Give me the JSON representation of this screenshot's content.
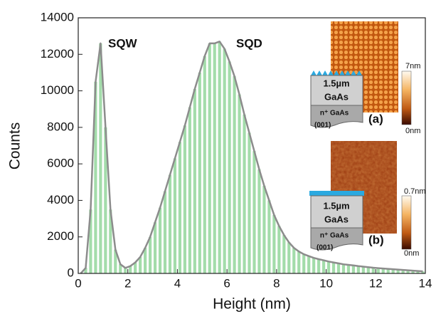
{
  "chart_data": {
    "type": "histogram",
    "xlabel": "Height (nm)",
    "ylabel": "Counts",
    "xlim": [
      0,
      14
    ],
    "ylim": [
      0,
      14000
    ],
    "xticks": [
      0,
      2,
      4,
      6,
      8,
      10,
      12,
      14
    ],
    "yticks": [
      0,
      2000,
      4000,
      6000,
      8000,
      10000,
      12000,
      14000
    ],
    "color": "#a3dcaa",
    "outline_color": "#8c8c8c",
    "bins": [
      0,
      0.2,
      0.4,
      0.6,
      0.8,
      1,
      1.2,
      1.4,
      1.6,
      1.8,
      2,
      2.2,
      2.4,
      2.6,
      2.8,
      3,
      3.2,
      3.4,
      3.6,
      3.8,
      4,
      4.2,
      4.4,
      4.6,
      4.8,
      5,
      5.2,
      5.4,
      5.6,
      5.8,
      6,
      6.2,
      6.4,
      6.6,
      6.8,
      7,
      7.2,
      7.4,
      7.6,
      7.8,
      8,
      8.2,
      8.4,
      8.6,
      8.8,
      9,
      9.2,
      9.4,
      9.6,
      9.8,
      10,
      10.2,
      10.4,
      10.6,
      10.8,
      11,
      11.2,
      11.4,
      11.6,
      11.8,
      12,
      12.2,
      12.4,
      12.6,
      12.8,
      13,
      13.2,
      13.4,
      13.6,
      13.8,
      14
    ],
    "values": [
      0,
      300,
      3500,
      10500,
      12600,
      8000,
      3500,
      1300,
      500,
      300,
      400,
      600,
      900,
      1400,
      2000,
      2800,
      3600,
      4500,
      5400,
      6300,
      7200,
      8100,
      9100,
      10100,
      11000,
      11900,
      12600,
      12600,
      12700,
      12300,
      11600,
      10800,
      9800,
      8700,
      7700,
      6700,
      5700,
      4800,
      4000,
      3200,
      2600,
      2100,
      1700,
      1400,
      1200,
      1050,
      950,
      850,
      780,
      720,
      650,
      600,
      550,
      500,
      470,
      440,
      400,
      370,
      340,
      310,
      290,
      270,
      250,
      230,
      210,
      190,
      170,
      150,
      130,
      110
    ],
    "annotations": [
      "SQW",
      "SQD"
    ],
    "insets": [
      {
        "layer": "1.5µm",
        "material": "GaAs",
        "substrate": "n⁺ GaAs",
        "orientation": "(001)",
        "label": "(a)",
        "scale_max": "7nm",
        "scale_min": "0nm"
      },
      {
        "layer": "1.5µm",
        "material": "GaAs",
        "substrate": "n⁺ GaAs",
        "orientation": "(001)",
        "label": "(b)",
        "scale_max": "0.7nm",
        "scale_min": "0nm"
      }
    ]
  }
}
